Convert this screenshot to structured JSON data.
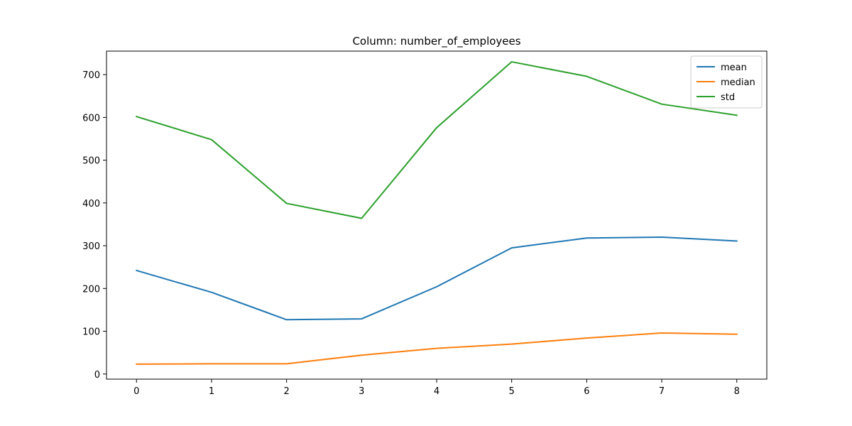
{
  "chart_data": {
    "type": "line",
    "title": "Column: number_of_employees",
    "xlabel": "",
    "ylabel": "",
    "x": [
      0,
      1,
      2,
      3,
      4,
      5,
      6,
      7,
      8
    ],
    "xlim": [
      -0.4,
      8.4
    ],
    "ylim": [
      -12,
      755
    ],
    "xticks": [
      0,
      1,
      2,
      3,
      4,
      5,
      6,
      7,
      8
    ],
    "yticks": [
      0,
      100,
      200,
      300,
      400,
      500,
      600,
      700
    ],
    "grid": false,
    "legend_position": "top-right",
    "series": [
      {
        "name": "mean",
        "color": "#1f77b4",
        "values": [
          242,
          191,
          127,
          129,
          204,
          295,
          318,
          320,
          311
        ]
      },
      {
        "name": "median",
        "color": "#ff7f0e",
        "values": [
          23,
          24,
          24,
          44,
          60,
          70,
          84,
          96,
          93
        ]
      },
      {
        "name": "std",
        "color": "#2ca02c",
        "values": [
          602,
          548,
          399,
          364,
          576,
          730,
          696,
          631,
          605
        ]
      }
    ]
  }
}
